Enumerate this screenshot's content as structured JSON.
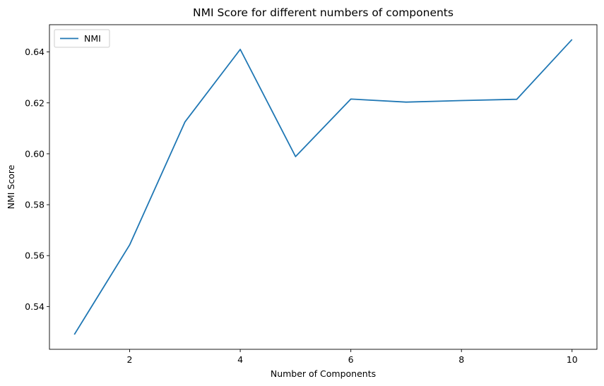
{
  "chart_data": {
    "type": "line",
    "title": "NMI Score for different numbers of components",
    "xlabel": "Number of Components",
    "ylabel": "NMI Score",
    "x": [
      1,
      2,
      3,
      4,
      5,
      6,
      7,
      8,
      9,
      10
    ],
    "series": [
      {
        "name": "NMI",
        "color": "#1f77b4",
        "values": [
          0.529,
          0.5642,
          0.6125,
          0.641,
          0.5989,
          0.6215,
          0.6203,
          0.6209,
          0.6214,
          0.6449
        ]
      }
    ],
    "xlim": [
      0.55,
      10.45
    ],
    "ylim": [
      0.5232,
      0.6507
    ],
    "xticks": [
      2,
      4,
      6,
      8,
      10
    ],
    "xtick_labels": [
      "2",
      "4",
      "6",
      "8",
      "10"
    ],
    "yticks": [
      0.54,
      0.56,
      0.58,
      0.6,
      0.62,
      0.64
    ],
    "ytick_labels": [
      "0.54",
      "0.56",
      "0.58",
      "0.60",
      "0.62",
      "0.64"
    ],
    "grid": false,
    "legend_position": "upper-left"
  }
}
